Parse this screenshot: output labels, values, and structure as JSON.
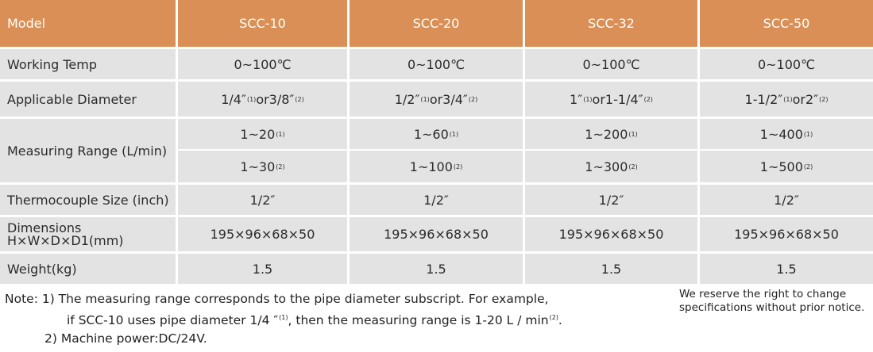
{
  "table": {
    "header": {
      "model_label": "Model",
      "models": [
        "SCC-10",
        "SCC-20",
        "SCC-32",
        "SCC-50"
      ]
    },
    "working_temp": {
      "label": "Working Temp",
      "values": [
        "0~100℃",
        "0~100℃",
        "0~100℃",
        "0~100℃"
      ]
    },
    "applicable_diameter": {
      "label": "Applicable Diameter",
      "values": [
        {
          "a": "1/4″",
          "a_sup": "(1)",
          "or": "or3/8″",
          "b_sup": "(2)"
        },
        {
          "a": "1/2″",
          "a_sup": "(1)",
          "or": "or3/4″",
          "b_sup": "(2)"
        },
        {
          "a": "1″",
          "a_sup": "(1)",
          "or": "or1-1/4″",
          "b_sup": "(2)"
        },
        {
          "a": "1-1/2″",
          "a_sup": "(1)",
          "or": "or2″",
          "b_sup": "(2)"
        }
      ]
    },
    "measuring_range": {
      "label": "Measuring Range (L/min)",
      "row1": [
        {
          "v": "1~20",
          "sup": "(1)"
        },
        {
          "v": "1~60",
          "sup": "(1)"
        },
        {
          "v": "1~200",
          "sup": "(1)"
        },
        {
          "v": "1~400",
          "sup": "(1)"
        }
      ],
      "row2": [
        {
          "v": "1~30",
          "sup": "(2)"
        },
        {
          "v": "1~100",
          "sup": "(2)"
        },
        {
          "v": "1~300",
          "sup": "(2)"
        },
        {
          "v": "1~500",
          "sup": "(2)"
        }
      ]
    },
    "thermocouple": {
      "label": "Thermocouple Size (inch)",
      "values": [
        "1/2″",
        "1/2″",
        "1/2″",
        "1/2″"
      ]
    },
    "dimensions": {
      "label_line1": "Dimensions",
      "label_line2": "H×W×D×D1(mm)",
      "values": [
        "195×96×68×50",
        "195×96×68×50",
        "195×96×68×50",
        "195×96×68×50"
      ]
    },
    "weight": {
      "label": "Weight(kg)",
      "values": [
        "1.5",
        "1.5",
        "1.5",
        "1.5"
      ]
    }
  },
  "notes": {
    "line1": "Note: 1) The measuring range corresponds to the pipe diameter subscript. For example,",
    "line2_a": "if SCC-10 uses pipe diameter 1/4 ″",
    "line2_sup1": "(1)",
    "line2_b": ", then the measuring range is 1-20 L / min",
    "line2_sup2": "(2)",
    "line2_c": ".",
    "line3": "2) Machine power:DC/24V."
  },
  "disclaimer": {
    "line1": "We reserve the right to change",
    "line2": "specifications without prior notice."
  },
  "colors": {
    "header_bg": "#d98f55",
    "row_bg": "#e3e3e3"
  }
}
